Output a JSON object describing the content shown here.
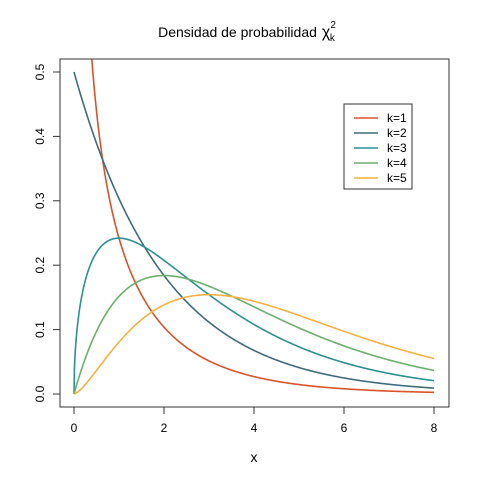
{
  "chart_data": {
    "type": "line",
    "title": "Densidad de probabilidad",
    "title_symbol": "χ",
    "title_superscript": "2",
    "title_subscript": "k",
    "xlabel": "x",
    "ylabel": "",
    "xlim": [
      0,
      8
    ],
    "ylim": [
      0,
      0.5
    ],
    "x_ticks": [
      "0",
      "2",
      "4",
      "6",
      "8"
    ],
    "y_ticks": [
      "0.0",
      "0.1",
      "0.2",
      "0.3",
      "0.4",
      "0.5"
    ],
    "grid": false,
    "legend_position": "top-right",
    "series": [
      {
        "name": "k=1",
        "df": 1,
        "color": "#d9532a"
      },
      {
        "name": "k=2",
        "df": 2,
        "color": "#3f6b7c"
      },
      {
        "name": "k=3",
        "df": 3,
        "color": "#2a9090"
      },
      {
        "name": "k=4",
        "df": 4,
        "color": "#6aaf6a"
      },
      {
        "name": "k=5",
        "df": 5,
        "color": "#f6b041"
      }
    ]
  }
}
